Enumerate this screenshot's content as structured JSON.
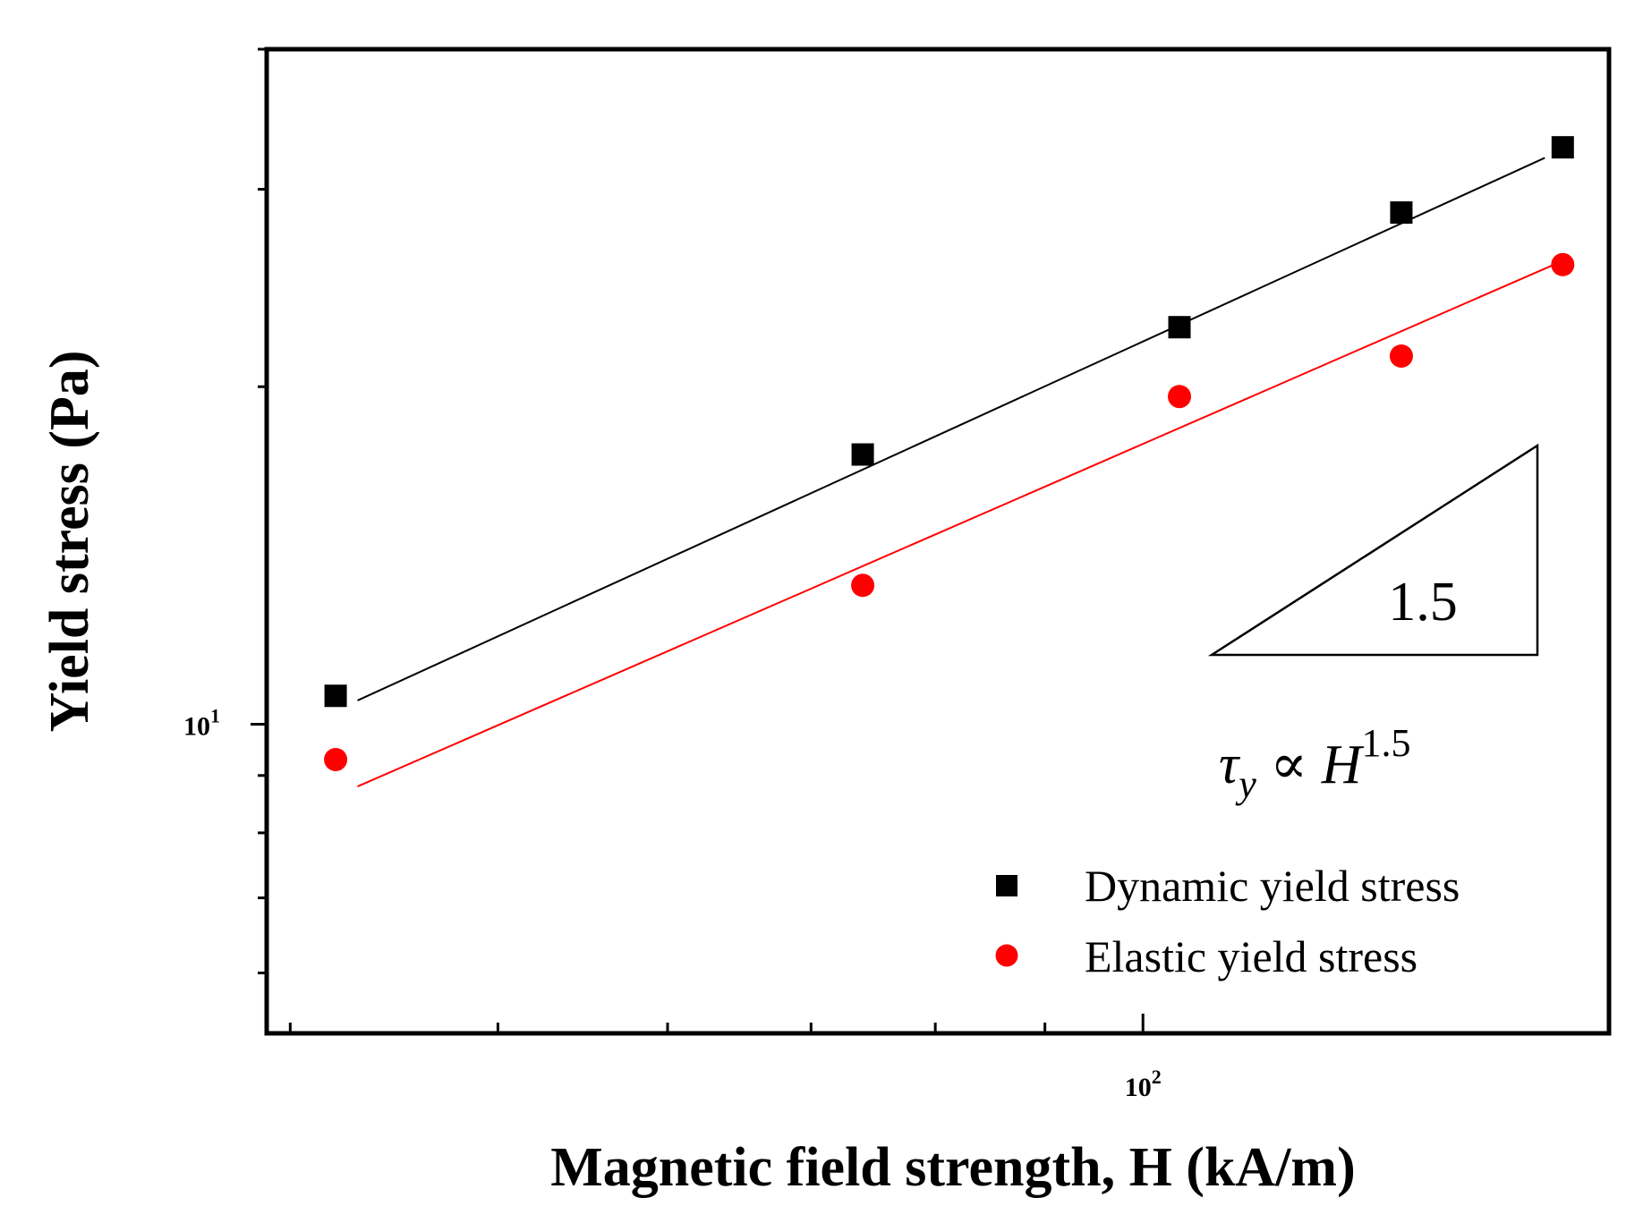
{
  "chart_data": {
    "type": "scatter",
    "title": "",
    "xlabel": "Magnetic field strength, H (kA/m)",
    "ylabel": "Yield stress (Pa)",
    "xscale": "log",
    "yscale": "log",
    "xlim": [
      39,
      165
    ],
    "ylim": [
      5.3,
      40
    ],
    "x_major_ticks": [
      {
        "value": 100,
        "base": "10",
        "exp": "2"
      }
    ],
    "y_major_ticks": [
      {
        "value": 10,
        "base": "10",
        "exp": "1"
      }
    ],
    "series": [
      {
        "name": "Dynamic yield stress",
        "marker": "square",
        "color": "#000000",
        "x": [
          42,
          74,
          104,
          132,
          157
        ],
        "y": [
          10.6,
          17.4,
          22.6,
          28.6,
          32.7
        ],
        "fit": {
          "x": [
            43,
            154
          ],
          "y": [
            10.5,
            32.0
          ]
        }
      },
      {
        "name": "Elastic yield stress",
        "marker": "circle",
        "color": "#ff0000",
        "x": [
          42,
          74,
          104,
          132,
          157
        ],
        "y": [
          9.3,
          13.3,
          19.6,
          21.3,
          25.7
        ],
        "fit": {
          "x": [
            43,
            157
          ],
          "y": [
            8.8,
            25.9
          ]
        }
      }
    ],
    "legend": {
      "position": "bottom-right"
    },
    "annotations": {
      "slope_label": "1.5",
      "equation": {
        "tau": "τ",
        "sub": "y",
        "prop": " ∝ ",
        "H": "H",
        "exp": "1.5"
      }
    }
  }
}
